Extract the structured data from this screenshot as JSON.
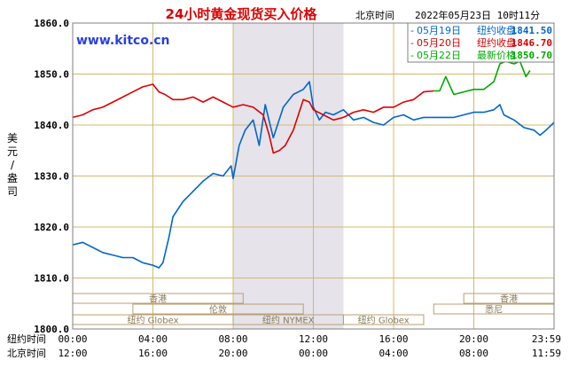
{
  "chart_data": {
    "type": "line",
    "title": "24小时黄金现货买入价格",
    "timestamp_label": "北京时间",
    "timestamp": "2022年05月23日 10时11分",
    "watermark": "www.kitco.cn",
    "ylabel": "美元/盎司",
    "ylim": [
      1800,
      1860
    ],
    "yticks": [
      "1860.0",
      "1850.0",
      "1840.0",
      "1830.0",
      "1820.0",
      "1810.0",
      "1800.0"
    ],
    "x_rows": [
      {
        "label": "纽约时间",
        "ticks": [
          "00:00",
          "04:00",
          "08:00",
          "12:00",
          "16:00",
          "20:00",
          "23:59"
        ]
      },
      {
        "label": "北京时间",
        "ticks": [
          "12:00",
          "16:00",
          "20:00",
          "00:00",
          "04:00",
          "08:00",
          "11:59"
        ]
      }
    ],
    "legend": [
      {
        "date": "05月19日",
        "label": "纽约收盘",
        "value": "1841.50",
        "color": "#0066cc"
      },
      {
        "date": "05月20日",
        "label": "纽约收盘",
        "value": "1846.70",
        "color": "#dd0000"
      },
      {
        "date": "05月22日",
        "label": "最新价格",
        "value": "1850.70",
        "color": "#00aa00"
      }
    ],
    "markets": [
      {
        "name": "香港",
        "row": 0,
        "start": 0.0,
        "end": 8.5
      },
      {
        "name": "香港",
        "row": 0,
        "start": 19.5,
        "end": 24.0
      },
      {
        "name": "伦敦",
        "row": 1,
        "start": 3.0,
        "end": 11.5
      },
      {
        "name": "悉尼",
        "row": 1,
        "start": 18.0,
        "end": 24.0
      },
      {
        "name": "纽约 Globex",
        "row": 2,
        "start": 0.0,
        "end": 8.0
      },
      {
        "name": "纽约 NYMEX",
        "row": 2,
        "start": 8.0,
        "end": 13.5
      },
      {
        "name": "纽约 Globex",
        "row": 2,
        "start": 13.5,
        "end": 17.5
      }
    ],
    "shaded_range": [
      8.0,
      13.5
    ],
    "series": [
      {
        "name": "05月19日",
        "color": "#0066cc",
        "points": [
          [
            0,
            1816.5
          ],
          [
            0.5,
            1817
          ],
          [
            1,
            1816
          ],
          [
            1.5,
            1815
          ],
          [
            2,
            1814.5
          ],
          [
            2.5,
            1814
          ],
          [
            3,
            1814
          ],
          [
            3.5,
            1813
          ],
          [
            4,
            1812.5
          ],
          [
            4.3,
            1812
          ],
          [
            4.5,
            1813
          ],
          [
            4.8,
            1818
          ],
          [
            5,
            1822
          ],
          [
            5.5,
            1825
          ],
          [
            6,
            1827
          ],
          [
            6.5,
            1829
          ],
          [
            7,
            1830.5
          ],
          [
            7.5,
            1830
          ],
          [
            7.9,
            1832
          ],
          [
            8,
            1829.5
          ],
          [
            8.3,
            1836
          ],
          [
            8.6,
            1839
          ],
          [
            9,
            1841
          ],
          [
            9.3,
            1836
          ],
          [
            9.6,
            1844
          ],
          [
            10,
            1837.5
          ],
          [
            10.5,
            1843.5
          ],
          [
            11,
            1846
          ],
          [
            11.5,
            1847
          ],
          [
            11.8,
            1848.5
          ],
          [
            12,
            1843.5
          ],
          [
            12.3,
            1841
          ],
          [
            12.6,
            1842.5
          ],
          [
            13,
            1842
          ],
          [
            13.5,
            1843
          ],
          [
            14,
            1841
          ],
          [
            14.5,
            1841.5
          ],
          [
            15,
            1840.5
          ],
          [
            15.5,
            1840
          ],
          [
            16,
            1841.5
          ],
          [
            16.5,
            1842
          ],
          [
            17,
            1841
          ],
          [
            17.5,
            1841.5
          ],
          [
            18,
            1841.5
          ],
          [
            18.5,
            1841.5
          ],
          [
            19,
            1841.5
          ],
          [
            19.5,
            1842
          ],
          [
            20,
            1842.5
          ],
          [
            20.5,
            1842.5
          ],
          [
            21,
            1843
          ],
          [
            21.3,
            1844
          ],
          [
            21.5,
            1842
          ],
          [
            22,
            1841
          ],
          [
            22.5,
            1839.5
          ],
          [
            23,
            1839
          ],
          [
            23.3,
            1838
          ],
          [
            23.6,
            1839
          ],
          [
            24,
            1840.5
          ]
        ]
      },
      {
        "name": "05月20日",
        "color": "#dd0000",
        "points": [
          [
            0,
            1841.5
          ],
          [
            0.5,
            1842
          ],
          [
            1,
            1843
          ],
          [
            1.5,
            1843.5
          ],
          [
            2,
            1844.5
          ],
          [
            2.5,
            1845.5
          ],
          [
            3,
            1846.5
          ],
          [
            3.5,
            1847.5
          ],
          [
            4,
            1848
          ],
          [
            4.3,
            1846.5
          ],
          [
            4.6,
            1846
          ],
          [
            5,
            1845
          ],
          [
            5.5,
            1845
          ],
          [
            6,
            1845.5
          ],
          [
            6.5,
            1844.5
          ],
          [
            7,
            1845.5
          ],
          [
            7.5,
            1844.5
          ],
          [
            8,
            1843.5
          ],
          [
            8.5,
            1844
          ],
          [
            9,
            1843.5
          ],
          [
            9.5,
            1842
          ],
          [
            9.8,
            1838
          ],
          [
            10,
            1834.5
          ],
          [
            10.3,
            1835
          ],
          [
            10.6,
            1836
          ],
          [
            11,
            1839
          ],
          [
            11.5,
            1845
          ],
          [
            11.8,
            1844.5
          ],
          [
            12,
            1843
          ],
          [
            12.5,
            1842
          ],
          [
            13,
            1841
          ],
          [
            13.5,
            1841.5
          ],
          [
            14,
            1842.5
          ],
          [
            14.5,
            1843
          ],
          [
            15,
            1842.5
          ],
          [
            15.5,
            1843.5
          ],
          [
            16,
            1843.5
          ],
          [
            16.5,
            1844.5
          ],
          [
            17,
            1845
          ],
          [
            17.5,
            1846.5
          ],
          [
            18,
            1846.7
          ]
        ]
      },
      {
        "name": "05月22日",
        "color": "#00aa00",
        "points": [
          [
            18,
            1846.7
          ],
          [
            18.3,
            1846.7
          ],
          [
            18.6,
            1849.5
          ],
          [
            19,
            1846
          ],
          [
            19.5,
            1846.5
          ],
          [
            20,
            1847
          ],
          [
            20.5,
            1847
          ],
          [
            21,
            1848.5
          ],
          [
            21.3,
            1852
          ],
          [
            21.6,
            1852.5
          ],
          [
            22,
            1852
          ],
          [
            22.3,
            1852.5
          ],
          [
            22.6,
            1849.5
          ],
          [
            22.8,
            1850.7
          ]
        ]
      }
    ]
  }
}
